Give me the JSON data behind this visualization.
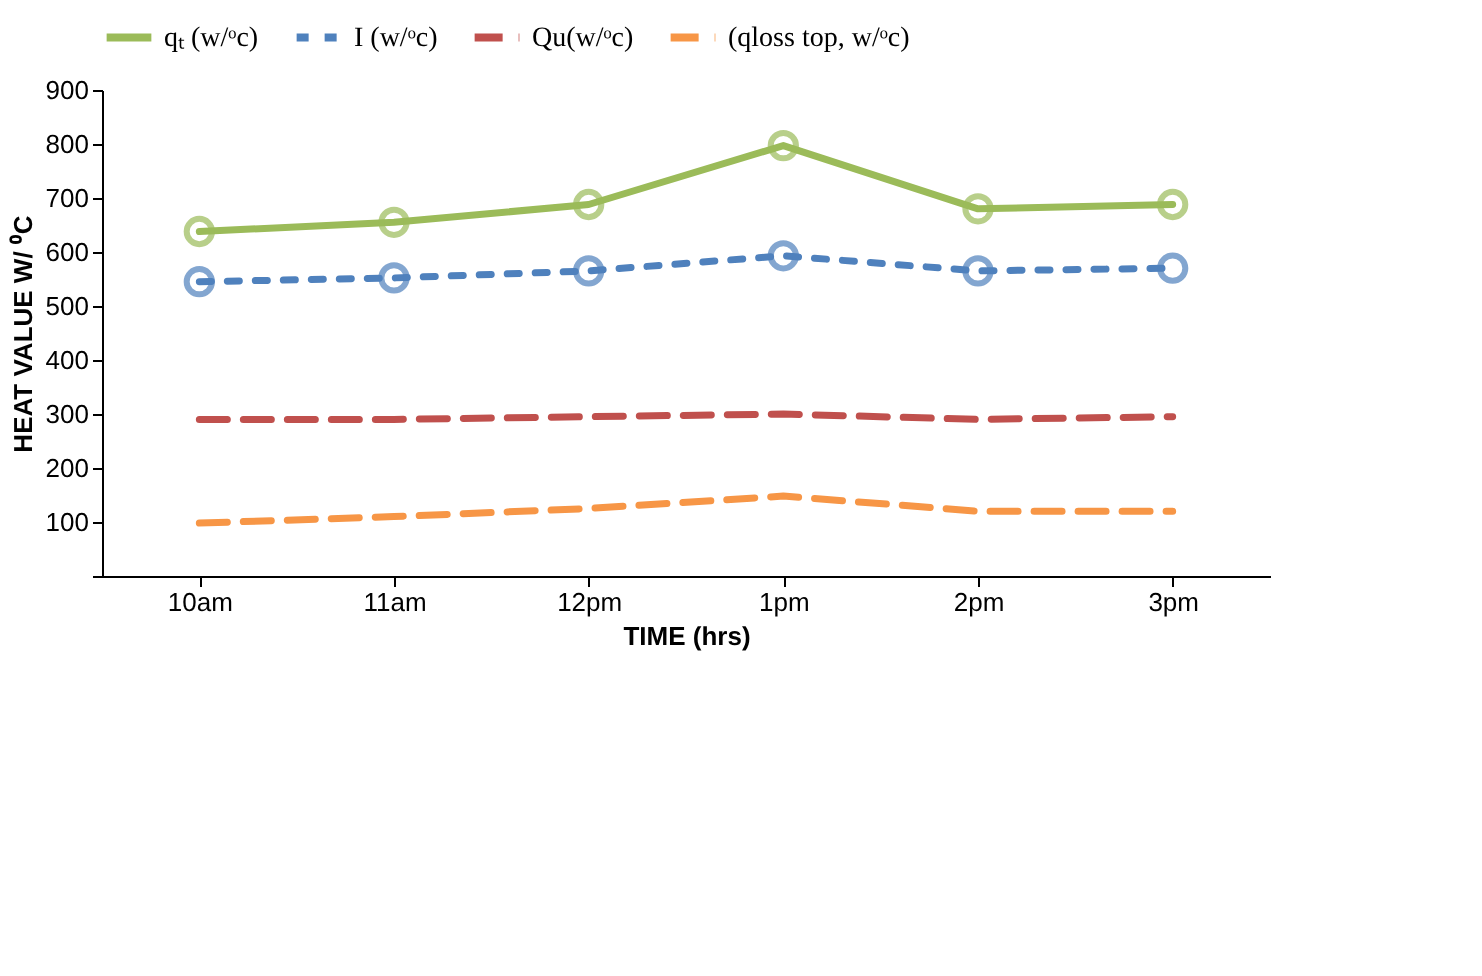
{
  "chart_data": {
    "type": "line",
    "xlabel": "TIME (hrs)",
    "ylabel": "HEAT VALUE  W/ ⁰C",
    "categories": [
      "10am",
      "11am",
      "12pm",
      "1pm",
      "2pm",
      "3pm"
    ],
    "ylim": [
      0,
      900
    ],
    "yticks": [
      {
        "value": 0,
        "label": null
      },
      100,
      200,
      300,
      400,
      500,
      600,
      700,
      800,
      900
    ],
    "grid": false,
    "legend": "top",
    "series": [
      {
        "name": "qₜ (w/ᵒc)",
        "color": "#9bbb59",
        "line_style": "solid",
        "marker": "circle",
        "values": [
          638,
          655,
          688,
          797,
          680,
          688
        ]
      },
      {
        "name": "I (w/ᵒc)",
        "color": "#4f81bd",
        "line_style": "dotted",
        "marker": "circle",
        "values": [
          545,
          552,
          565,
          593,
          565,
          570
        ]
      },
      {
        "name": "Qu(w/ᵒc)",
        "color": "#c0504d",
        "line_style": "dashed",
        "marker": "none",
        "values": [
          290,
          290,
          295,
          300,
          290,
          295
        ]
      },
      {
        "name": "(qloss top, w/ᵒc)",
        "color": "#f79646",
        "line_style": "dashed",
        "marker": "none",
        "values": [
          98,
          110,
          125,
          148,
          120,
          120
        ]
      }
    ]
  }
}
